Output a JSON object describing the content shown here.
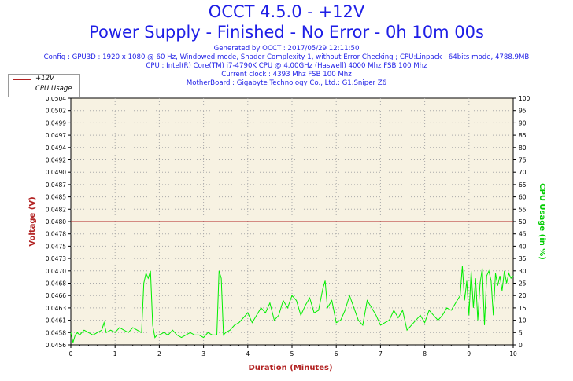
{
  "header": {
    "title": "OCCT 4.5.0 - +12V",
    "subtitle": "Power Supply - Finished - No Error - 0h 10m 00s",
    "generated": "Generated by OCCT : 2017/05/29 12:11:50",
    "config": "Config : GPU3D : 1920 x 1080 @ 60 Hz, Windowed mode, Shader Complexity 1, without Error Checking ; CPU:Linpack : 64bits mode, 4788.9MB",
    "cpu": "CPU : Intel(R) Core(TM) i7-4790K CPU @ 4.00GHz (Haswell) 4000 Mhz FSB 100 Mhz",
    "clock": "Current clock : 4393 Mhz FSB 100 Mhz",
    "motherboard": "MotherBoard : Gigabyte Technology Co., Ltd.: G1.Sniper Z6"
  },
  "legend": {
    "series1": "+12V",
    "series2": "CPU Usage"
  },
  "colors": {
    "voltage": "#b22222",
    "cpu": "#00ee00",
    "title": "#1e1ee6",
    "plot_bg": "#f7f2e2",
    "grid": "#aaaaaa"
  },
  "chart_data": {
    "type": "line",
    "xlabel": "Duration (Minutes)",
    "ylabel": "Voltage (V)",
    "y2label": "CPU Usage (in %)",
    "xlim": [
      0,
      10
    ],
    "ylim": [
      0.0456,
      0.0504
    ],
    "y2lim": [
      0,
      100
    ],
    "x_ticks": [
      "0",
      "1",
      "2",
      "3",
      "4",
      "5",
      "6",
      "7",
      "8",
      "9",
      "10"
    ],
    "y_ticks": [
      "0.0456",
      "0.0458",
      "0.0461",
      "0.0463",
      "0.0466",
      "0.0468",
      "0.0470",
      "0.0473",
      "0.0475",
      "0.0478",
      "0.0480",
      "0.0482",
      "0.0485",
      "0.0487",
      "0.0490",
      "0.0492",
      "0.0494",
      "0.0497",
      "0.0499",
      "0.0502",
      "0.0504"
    ],
    "y2_ticks": [
      "0",
      "5",
      "10",
      "15",
      "20",
      "25",
      "30",
      "35",
      "40",
      "45",
      "50",
      "55",
      "60",
      "65",
      "70",
      "75",
      "80",
      "85",
      "90",
      "95",
      "100"
    ],
    "grid": true,
    "series": [
      {
        "name": "+12V",
        "axis": "left",
        "x": [
          0,
          10
        ],
        "y": [
          0.048,
          0.048
        ]
      },
      {
        "name": "CPU Usage",
        "axis": "right",
        "x": [
          0,
          0.05,
          0.1,
          0.15,
          0.2,
          0.3,
          0.4,
          0.5,
          0.6,
          0.7,
          0.75,
          0.8,
          0.9,
          1.0,
          1.1,
          1.2,
          1.3,
          1.4,
          1.5,
          1.6,
          1.65,
          1.7,
          1.75,
          1.8,
          1.85,
          1.9,
          1.95,
          2.0,
          2.1,
          2.2,
          2.3,
          2.4,
          2.5,
          2.6,
          2.7,
          2.8,
          2.9,
          3.0,
          3.1,
          3.2,
          3.3,
          3.35,
          3.4,
          3.45,
          3.5,
          3.6,
          3.7,
          3.8,
          3.9,
          4.0,
          4.1,
          4.2,
          4.3,
          4.4,
          4.5,
          4.6,
          4.7,
          4.8,
          4.9,
          5.0,
          5.1,
          5.2,
          5.3,
          5.4,
          5.5,
          5.6,
          5.7,
          5.75,
          5.8,
          5.9,
          6.0,
          6.1,
          6.2,
          6.3,
          6.4,
          6.5,
          6.6,
          6.7,
          6.8,
          6.9,
          7.0,
          7.1,
          7.2,
          7.3,
          7.4,
          7.5,
          7.6,
          7.7,
          7.8,
          7.9,
          8.0,
          8.1,
          8.2,
          8.3,
          8.4,
          8.5,
          8.6,
          8.7,
          8.8,
          8.85,
          8.9,
          8.95,
          9.0,
          9.05,
          9.1,
          9.15,
          9.2,
          9.25,
          9.3,
          9.35,
          9.4,
          9.45,
          9.5,
          9.55,
          9.6,
          9.65,
          9.7,
          9.75,
          9.8,
          9.85,
          9.9,
          9.95,
          10.0
        ],
        "y": [
          5,
          1,
          4,
          5,
          4,
          6,
          5,
          4,
          5,
          6,
          9,
          5,
          6,
          5,
          7,
          6,
          5,
          7,
          6,
          5,
          25,
          29,
          27,
          30,
          8,
          3,
          4,
          4,
          5,
          4,
          6,
          4,
          3,
          4,
          5,
          4,
          4,
          3,
          5,
          4,
          4,
          30,
          27,
          4,
          5,
          6,
          8,
          9,
          11,
          13,
          9,
          12,
          15,
          13,
          17,
          10,
          12,
          18,
          15,
          20,
          18,
          12,
          16,
          19,
          13,
          14,
          23,
          26,
          15,
          18,
          9,
          10,
          14,
          20,
          15,
          10,
          8,
          18,
          15,
          12,
          8,
          9,
          10,
          14,
          11,
          14,
          6,
          8,
          10,
          12,
          9,
          14,
          12,
          10,
          12,
          15,
          14,
          17,
          20,
          32,
          18,
          26,
          12,
          30,
          15,
          27,
          10,
          25,
          31,
          8,
          28,
          30,
          26,
          12,
          29,
          24,
          28,
          22,
          30,
          25,
          29,
          27,
          28
        ]
      }
    ]
  }
}
